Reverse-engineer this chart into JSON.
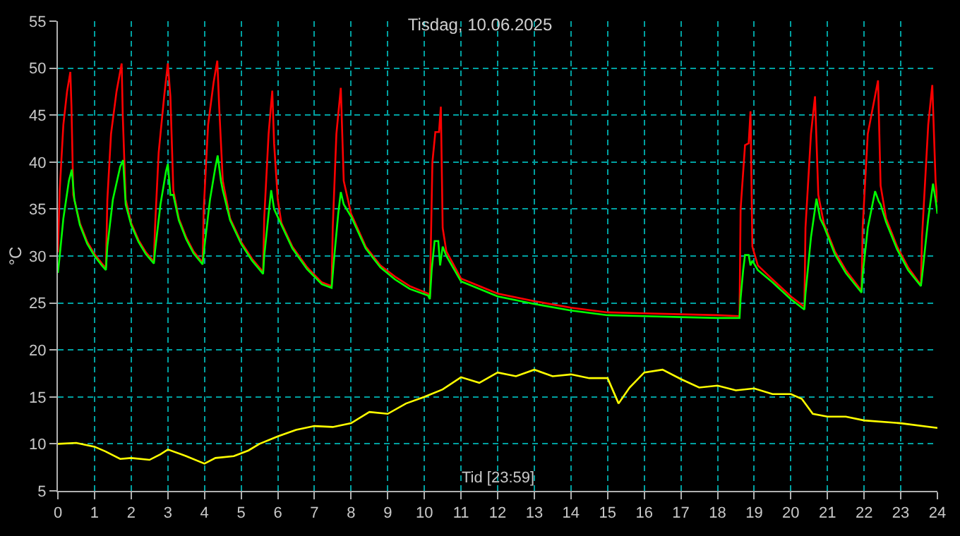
{
  "chart_data": {
    "type": "line",
    "title": "Tisdag, 10.06.2025",
    "xlabel": "Tid [23:59]",
    "ylabel": "°C",
    "xlim": [
      0,
      24
    ],
    "xticks": [
      0,
      1,
      2,
      3,
      4,
      5,
      6,
      7,
      8,
      9,
      10,
      11,
      12,
      13,
      14,
      15,
      16,
      17,
      18,
      19,
      20,
      21,
      22,
      23,
      24
    ],
    "ylim": [
      5,
      55
    ],
    "yticks": [
      5,
      10,
      15,
      20,
      25,
      30,
      35,
      40,
      45,
      50,
      55
    ],
    "grid": true,
    "marker": "none",
    "line_style": "solid",
    "series": [
      {
        "color": "#ff0000",
        "x": [
          0,
          0.05,
          0.15,
          0.25,
          0.34,
          0.37,
          0.42,
          0.6,
          0.8,
          1.0,
          1.2,
          1.31,
          1.35,
          1.45,
          1.6,
          1.74,
          1.77,
          1.85,
          2.0,
          2.2,
          2.4,
          2.62,
          2.65,
          2.75,
          2.9,
          3.0,
          3.07,
          3.15,
          3.3,
          3.5,
          3.7,
          3.95,
          3.98,
          4.1,
          4.25,
          4.35,
          4.4,
          4.5,
          4.7,
          5.0,
          5.3,
          5.6,
          5.63,
          5.75,
          5.85,
          5.9,
          6.0,
          6.1,
          6.4,
          6.8,
          7.2,
          7.47,
          7.5,
          7.6,
          7.72,
          7.8,
          8.0,
          8.4,
          8.8,
          9.2,
          9.6,
          10.1,
          10.15,
          10.22,
          10.3,
          10.4,
          10.45,
          10.5,
          10.6,
          11,
          12,
          13,
          14,
          15,
          16,
          17,
          18,
          18.6,
          18.63,
          18.75,
          18.85,
          18.9,
          18.95,
          19.1,
          19.5,
          20.0,
          20.37,
          20.4,
          20.55,
          20.66,
          20.75,
          20.9,
          21.2,
          21.5,
          21.93,
          21.96,
          22.1,
          22.38,
          22.45,
          22.6,
          22.9,
          23.2,
          23.55,
          23.58,
          23.75,
          23.86,
          23.95,
          24
        ],
        "values": [
          30.4,
          37,
          44,
          47.5,
          49.6,
          46,
          36.5,
          33.5,
          31.5,
          30.2,
          29.2,
          28.7,
          36,
          43,
          47.5,
          50.5,
          45,
          36,
          33.5,
          31.7,
          30.4,
          29.4,
          33,
          41,
          47,
          50.5,
          47,
          37,
          34,
          32,
          30.5,
          29.3,
          35,
          44,
          48.5,
          50.8,
          46,
          38,
          34,
          31.5,
          29.7,
          28.3,
          34,
          43,
          47.6,
          42,
          36,
          33.5,
          31,
          28.8,
          27.2,
          26.8,
          33,
          43,
          47.9,
          38,
          34.5,
          31,
          29,
          27.8,
          26.8,
          26,
          25.6,
          40,
          43.2,
          43.2,
          45.9,
          33,
          30.5,
          27.6,
          26,
          25.2,
          24.5,
          24.0,
          23.9,
          23.8,
          23.7,
          23.6,
          35,
          41.8,
          42,
          45.4,
          31,
          29,
          27.5,
          25.7,
          24.6,
          33,
          43,
          47.0,
          36.5,
          33.5,
          30.5,
          28.5,
          26.3,
          33,
          43,
          48.7,
          37.5,
          34,
          31,
          28.8,
          26.9,
          32,
          44,
          48.2,
          38,
          35.7
        ]
      },
      {
        "color": "#00ff00",
        "x": [
          0,
          0.05,
          0.15,
          0.3,
          0.38,
          0.45,
          0.6,
          0.8,
          1.0,
          1.2,
          1.31,
          1.35,
          1.5,
          1.7,
          1.78,
          1.85,
          2.0,
          2.2,
          2.4,
          2.62,
          2.65,
          2.8,
          2.95,
          3.0,
          3.07,
          3.15,
          3.3,
          3.5,
          3.7,
          3.95,
          4.0,
          4.15,
          4.3,
          4.36,
          4.45,
          4.5,
          4.7,
          5.0,
          5.3,
          5.6,
          5.63,
          5.75,
          5.82,
          5.9,
          6.1,
          6.4,
          6.8,
          7.2,
          7.47,
          7.52,
          7.65,
          7.72,
          7.8,
          8.0,
          8.4,
          8.8,
          9.2,
          9.6,
          10.1,
          10.15,
          10.2,
          10.28,
          10.38,
          10.43,
          10.5,
          10.6,
          11,
          12,
          13,
          14,
          15,
          16,
          17,
          18,
          18.6,
          18.63,
          18.7,
          18.75,
          18.85,
          18.9,
          18.95,
          19.1,
          19.5,
          20.0,
          20.37,
          20.4,
          20.55,
          20.7,
          20.8,
          20.9,
          21.2,
          21.5,
          21.93,
          21.96,
          22.1,
          22.3,
          22.4,
          22.45,
          22.6,
          22.9,
          23.2,
          23.55,
          23.6,
          23.75,
          23.88,
          23.95,
          24
        ],
        "values": [
          28.2,
          30,
          34,
          38,
          39.2,
          36,
          33.3,
          31.3,
          30.0,
          29.0,
          28.5,
          31,
          36,
          39.5,
          40.2,
          35.5,
          33.3,
          31.5,
          30.2,
          29.2,
          30.5,
          35.5,
          39,
          39.8,
          36.5,
          36.5,
          33.8,
          31.8,
          30.3,
          29.1,
          31,
          36,
          39.5,
          40.7,
          38,
          37,
          33.8,
          31.3,
          29.5,
          28.1,
          30,
          34.5,
          37,
          35,
          33.3,
          30.8,
          28.6,
          27,
          26.6,
          29,
          34.5,
          36.8,
          35.5,
          34.2,
          30.8,
          28.8,
          27.5,
          26.5,
          25.8,
          25.4,
          28.5,
          31.6,
          31.6,
          29,
          31,
          30,
          27.3,
          25.7,
          24.9,
          24.2,
          23.7,
          23.6,
          23.5,
          23.4,
          23.4,
          25.5,
          28.5,
          30.1,
          30.1,
          29,
          29.5,
          28.5,
          27.2,
          25.4,
          24.3,
          26,
          32,
          36.1,
          34,
          33.2,
          30.2,
          28.2,
          26.1,
          28,
          33,
          36.9,
          35.8,
          35.5,
          33.6,
          30.7,
          28.5,
          26.8,
          28.5,
          34,
          37.7,
          36,
          34.5
        ]
      },
      {
        "color": "#ffff00",
        "x": [
          0,
          0.5,
          1,
          1.3,
          1.7,
          2.0,
          2.5,
          2.8,
          3.0,
          3.5,
          4.0,
          4.3,
          4.8,
          5.2,
          5.5,
          6.0,
          6.5,
          7.0,
          7.5,
          8.0,
          8.5,
          9.0,
          9.5,
          10.0,
          10.5,
          11.0,
          11.5,
          12.0,
          12.5,
          13.0,
          13.5,
          14.0,
          14.5,
          15.0,
          15.3,
          15.6,
          16.0,
          16.5,
          17.0,
          17.5,
          18.0,
          18.5,
          19.0,
          19.5,
          20.0,
          20.3,
          20.6,
          21.0,
          21.5,
          22.0,
          23.0,
          24.0
        ],
        "values": [
          10.0,
          10.1,
          9.7,
          9.2,
          8.4,
          8.5,
          8.3,
          8.9,
          9.4,
          8.7,
          7.9,
          8.5,
          8.7,
          9.3,
          10.0,
          10.8,
          11.5,
          11.9,
          11.8,
          12.2,
          13.4,
          13.2,
          14.3,
          15.0,
          15.8,
          17.1,
          16.5,
          17.6,
          17.2,
          17.9,
          17.2,
          17.4,
          17.0,
          17.0,
          14.3,
          16.0,
          17.6,
          17.9,
          16.9,
          16.0,
          16.2,
          15.7,
          15.9,
          15.3,
          15.3,
          14.8,
          13.2,
          12.9,
          12.9,
          12.5,
          12.2,
          11.7
        ]
      }
    ]
  }
}
